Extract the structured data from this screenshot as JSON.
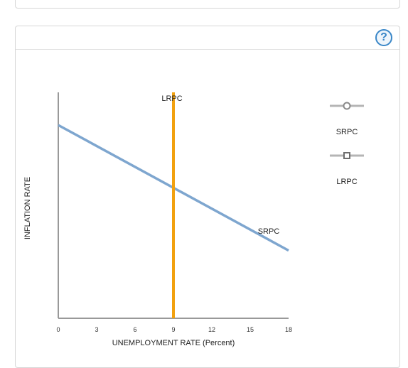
{
  "help": {
    "label": "?"
  },
  "chart_data": {
    "type": "line",
    "xlabel": "UNEMPLOYMENT RATE (Percent)",
    "ylabel": "INFLATION RATE",
    "xlim": [
      0,
      18
    ],
    "xticks": [
      "0",
      "3",
      "6",
      "9",
      "12",
      "15",
      "18"
    ],
    "series": [
      {
        "name": "SRPC",
        "x": [
          0,
          18
        ],
        "y": [
          0.71,
          -0.4
        ],
        "color": "#7ea6cf"
      },
      {
        "name": "LRPC",
        "x": [
          9,
          9
        ],
        "y": [
          1.0,
          -1.0
        ],
        "color": "#f2a10f"
      }
    ]
  },
  "legend": {
    "items": [
      {
        "label": "SRPC",
        "marker": "circle-marker-icon"
      },
      {
        "label": "LRPC",
        "marker": "square-marker-icon"
      }
    ]
  }
}
